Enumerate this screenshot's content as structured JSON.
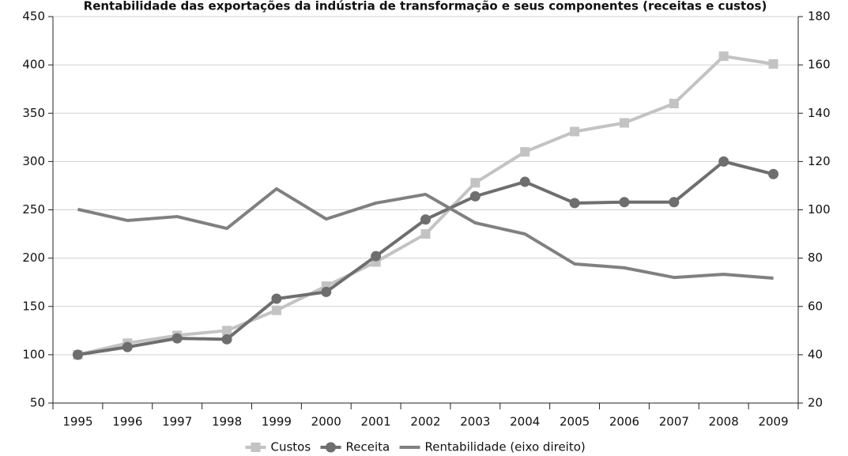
{
  "chart_data": {
    "type": "line",
    "title": "Rentabilidade das exportações da indústria de transformação e seus componentes (receitas e custos)",
    "categories": [
      "1995",
      "1996",
      "1997",
      "1998",
      "1999",
      "2000",
      "2001",
      "2002",
      "2003",
      "2004",
      "2005",
      "2006",
      "2007",
      "2008",
      "2009"
    ],
    "series": [
      {
        "name": "Custos",
        "color": "#c3c3c3",
        "marker": "square",
        "values": [
          100,
          112,
          120,
          125,
          146,
          171,
          196,
          225,
          278,
          310,
          331,
          340,
          360,
          409,
          401
        ]
      },
      {
        "name": "Receita",
        "color": "#6e6e6e",
        "marker": "circle",
        "values": [
          100,
          108,
          117,
          116,
          158,
          165,
          202,
          240,
          264,
          279,
          257,
          258,
          258,
          300,
          287
        ]
      },
      {
        "name": "Rentabilidade (eixo direito)",
        "color": "#808080",
        "marker": "none",
        "axis": "y2",
        "values": [
          100.2,
          95.6,
          97.2,
          92.3,
          108.7,
          96.2,
          102.8,
          106.4,
          94.6,
          90,
          77.6,
          76,
          72,
          73.3,
          71.7
        ]
      }
    ],
    "ylim": [
      50,
      450
    ],
    "yticks": [
      50,
      100,
      150,
      200,
      250,
      300,
      350,
      400,
      450
    ],
    "y2lim": [
      20,
      180
    ],
    "y2ticks": [
      20,
      40,
      60,
      80,
      100,
      120,
      140,
      160,
      180
    ],
    "grid": true,
    "legend": "bottom"
  }
}
